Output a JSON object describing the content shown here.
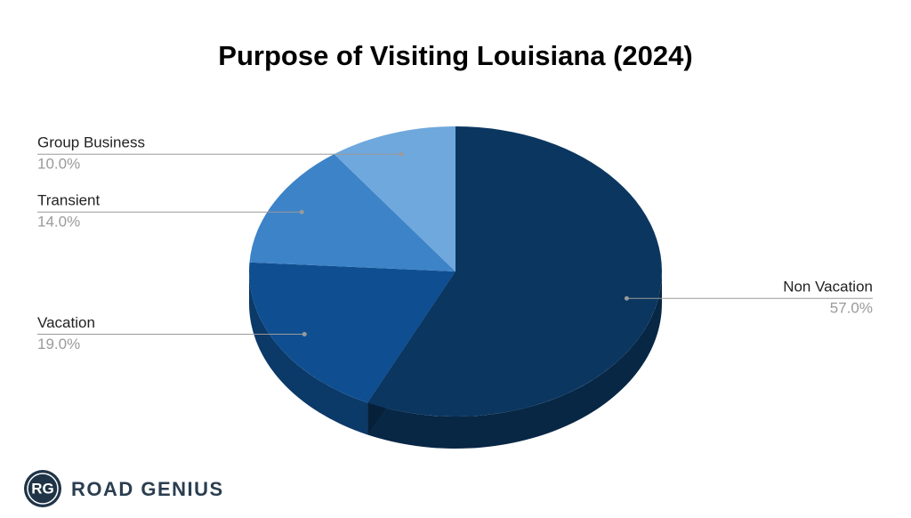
{
  "chart_data": {
    "type": "pie",
    "title": "Purpose of Visiting Louisiana (2024)",
    "categories": [
      "Non Vacation",
      "Vacation",
      "Transient",
      "Group Business"
    ],
    "values": [
      57,
      19,
      14,
      10
    ],
    "value_labels": [
      "57.0%",
      "19.0%",
      "14.0%",
      "10.0%"
    ],
    "colors": [
      "#0b3660",
      "#0f4f91",
      "#3d83c8",
      "#6fa8dc"
    ]
  },
  "logo": {
    "initials": "RG",
    "name": "ROAD GENIUS"
  }
}
